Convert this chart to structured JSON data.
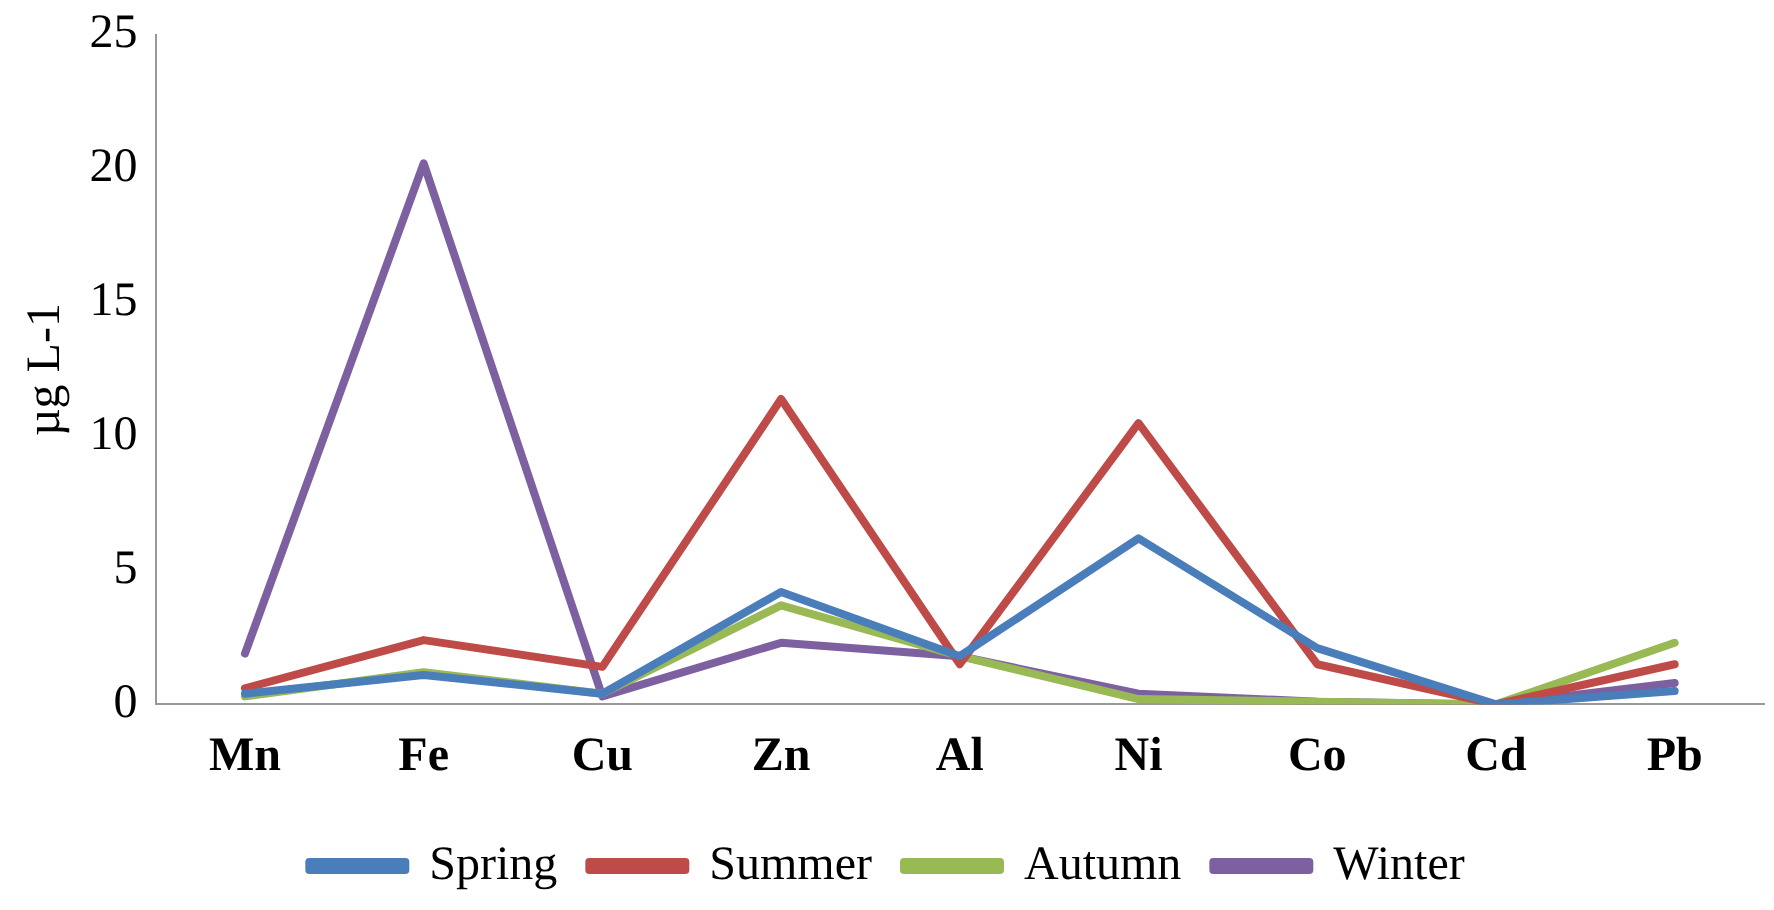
{
  "chart_data": {
    "type": "line",
    "ylabel": "µg L-1",
    "categories": [
      "Mn",
      "Fe",
      "Cu",
      "Zn",
      "Al",
      "Ni",
      "Co",
      "Cd",
      "Pb"
    ],
    "series": [
      {
        "name": "Spring",
        "color": "#4a7ebb",
        "values": [
          0.4,
          1.1,
          0.4,
          4.2,
          1.8,
          6.2,
          2.1,
          0,
          0.5
        ]
      },
      {
        "name": "Summer",
        "color": "#be4b48",
        "values": [
          0.6,
          2.4,
          1.4,
          11.4,
          1.5,
          10.5,
          1.5,
          0,
          1.5
        ]
      },
      {
        "name": "Autumn",
        "color": "#98b954",
        "values": [
          0.3,
          1.2,
          0.4,
          3.7,
          1.8,
          0.2,
          0.1,
          0,
          2.3
        ]
      },
      {
        "name": "Winter",
        "color": "#7d60a0",
        "values": [
          1.9,
          20.2,
          0.3,
          2.3,
          1.8,
          0.4,
          0.1,
          0,
          0.8
        ]
      }
    ],
    "ylim": [
      0,
      25
    ],
    "yticks": [
      0,
      5,
      10,
      15,
      20,
      25
    ],
    "grid": false,
    "legend": "bottom",
    "marker": "none",
    "line_style": "solid"
  }
}
